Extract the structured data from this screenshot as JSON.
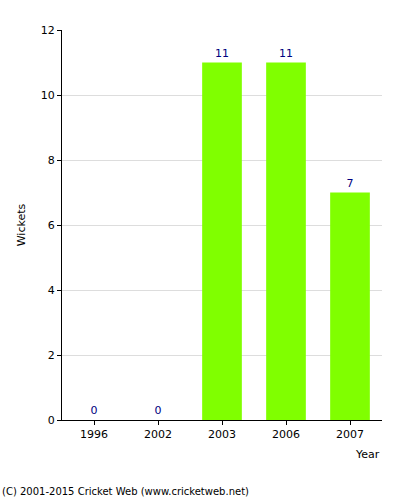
{
  "chart_data": {
    "type": "bar",
    "categories": [
      "1996",
      "2002",
      "2003",
      "2006",
      "2007"
    ],
    "values": [
      0,
      0,
      11,
      11,
      7
    ],
    "color": "#80ff00",
    "x_label": "Year",
    "y_label": "Wickets",
    "ylim": [
      0,
      12
    ],
    "yticks": [
      0,
      2,
      4,
      6,
      8,
      10,
      12
    ],
    "grid": true,
    "data_labels": true,
    "annotations": [
      "(C) 2001-2015 Cricket Web (www.cricketweb.net)"
    ]
  }
}
